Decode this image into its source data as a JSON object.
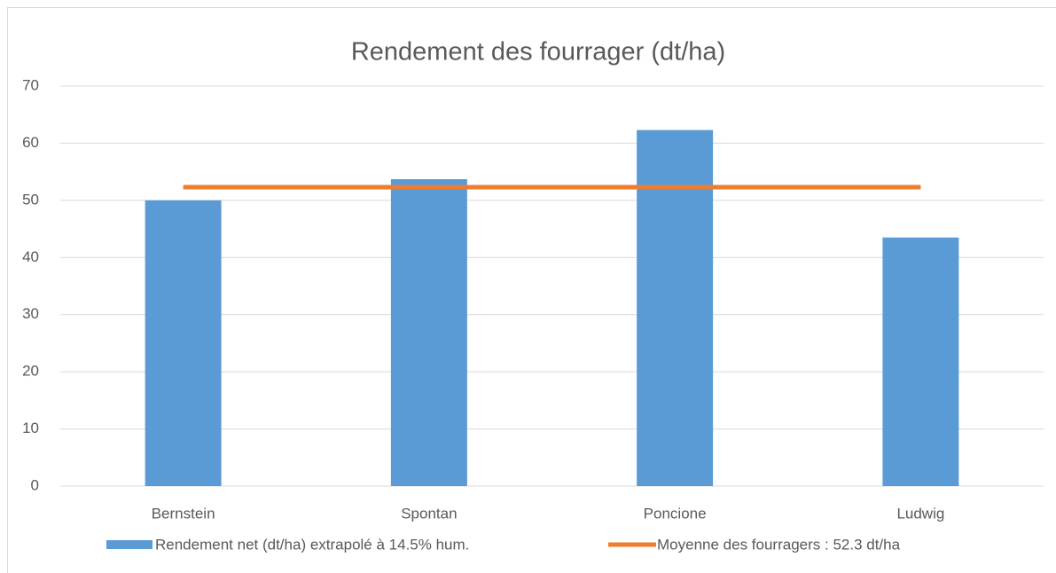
{
  "chart_data": {
    "type": "bar",
    "title": "Rendement des fourrager (dt/ha)",
    "categories": [
      "Bernstein",
      "Spontan",
      "Poncione",
      "Ludwig"
    ],
    "series": [
      {
        "name": "Rendement net (dt/ha) extrapolé à 14.5% hum.",
        "type": "bar",
        "color": "#5b9bd5",
        "values": [
          50.0,
          53.7,
          62.3,
          43.5
        ]
      },
      {
        "name": "Moyenne des fourragers : 52.3 dt/ha",
        "type": "line",
        "color": "#ed7d31",
        "values": [
          52.3,
          52.3,
          52.3,
          52.3
        ]
      }
    ],
    "ylim": [
      0,
      70
    ],
    "yticks": [
      0,
      10,
      20,
      30,
      40,
      50,
      60,
      70
    ],
    "grid": true,
    "legend": "bottom"
  }
}
